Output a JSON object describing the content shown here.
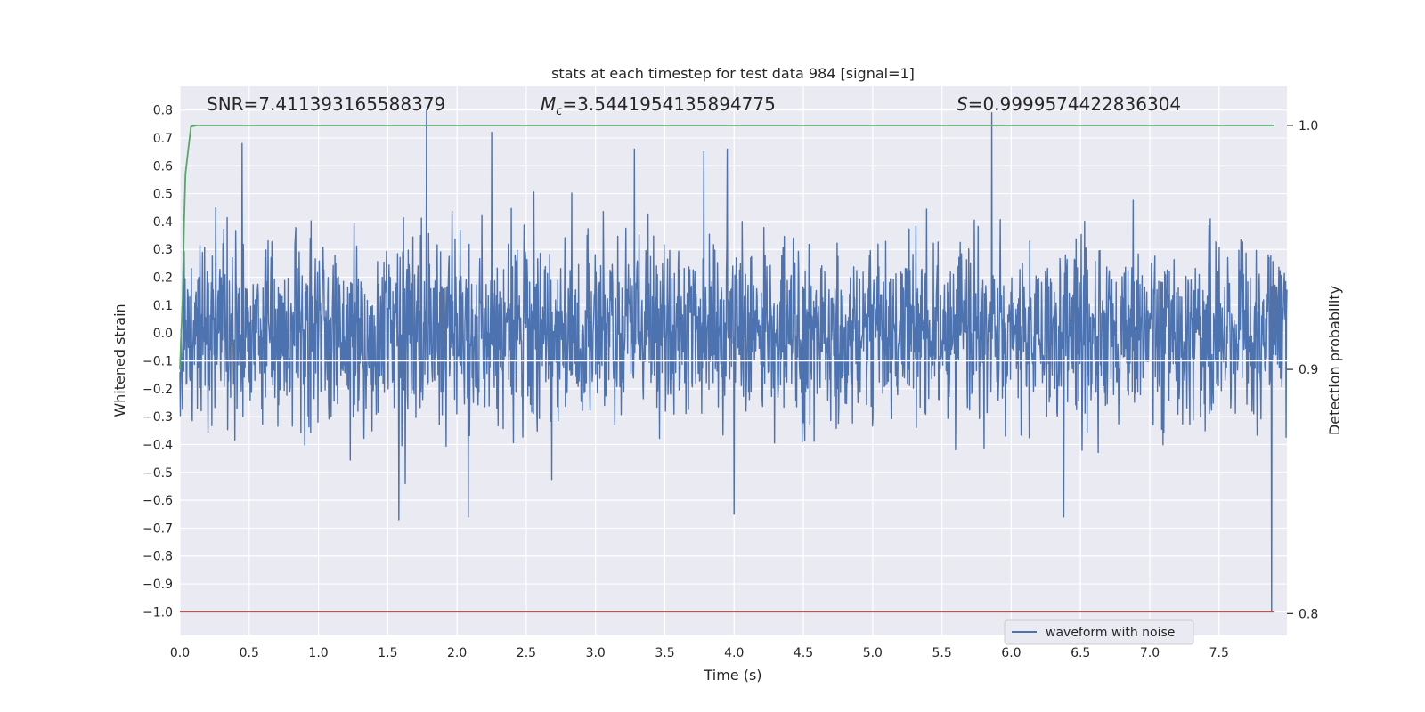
{
  "chart_data": {
    "type": "line",
    "title": "stats at each timestep for test data 984 [signal=1]",
    "xlabel": "Time (s)",
    "ylabel": "Whitened strain",
    "y2label": "Detection probability",
    "xlim": [
      0.0,
      7.99
    ],
    "ylim": [
      -1.085,
      0.885
    ],
    "y2lim": [
      0.791,
      1.016
    ],
    "xticks": [
      "0.0",
      "0.5",
      "1.0",
      "1.5",
      "2.0",
      "2.5",
      "3.0",
      "3.5",
      "4.0",
      "4.5",
      "5.0",
      "5.5",
      "6.0",
      "6.5",
      "7.0",
      "7.5"
    ],
    "xtick_values": [
      0.0,
      0.5,
      1.0,
      1.5,
      2.0,
      2.5,
      3.0,
      3.5,
      4.0,
      4.5,
      5.0,
      5.5,
      6.0,
      6.5,
      7.0,
      7.5
    ],
    "yticks": [
      "0.8",
      "0.7",
      "0.6",
      "0.5",
      "0.4",
      "0.3",
      "0.2",
      "0.1",
      "0.0",
      "−0.1",
      "−0.2",
      "−0.3",
      "−0.4",
      "−0.5",
      "−0.6",
      "−0.7",
      "−0.8",
      "−0.9",
      "−1.0"
    ],
    "ytick_values": [
      0.8,
      0.7,
      0.6,
      0.5,
      0.4,
      0.3,
      0.2,
      0.1,
      0.0,
      -0.1,
      -0.2,
      -0.3,
      -0.4,
      -0.5,
      -0.6,
      -0.7,
      -0.8,
      -0.9,
      -1.0
    ],
    "y2ticks": [
      "1.0",
      "0.9",
      "0.8"
    ],
    "y2tick_values": [
      1.0,
      0.9,
      0.8
    ],
    "grid": true,
    "annotations": {
      "snr": "SNR=7.411393165588379",
      "mc": "=3.5441954135894775",
      "mc_symbol": "M",
      "mc_subscript": "c",
      "s": "=0.9999574422836304",
      "s_symbol": "S"
    },
    "series": [
      {
        "name": "waveform with noise",
        "axis": "left",
        "color": "#4c72b0",
        "t_start": 0.0,
        "t_end": 7.99,
        "y_range": [
          -1.0,
          0.8
        ],
        "typical_envelope": [
          -0.35,
          0.35
        ],
        "peaks": [
          {
            "t": 1.78,
            "y": 0.8
          },
          {
            "t": 5.86,
            "y": 0.79
          },
          {
            "t": 0.45,
            "y": 0.68
          },
          {
            "t": 2.25,
            "y": 0.72
          },
          {
            "t": 3.28,
            "y": 0.66
          },
          {
            "t": 3.78,
            "y": 0.65
          },
          {
            "t": 3.95,
            "y": 0.66
          },
          {
            "t": 7.88,
            "y": 0.63
          },
          {
            "t": 1.58,
            "y": -0.67
          },
          {
            "t": 2.08,
            "y": -0.66
          },
          {
            "t": 4.0,
            "y": -0.65
          },
          {
            "t": 6.38,
            "y": -0.66
          },
          {
            "t": 7.88,
            "y": -1.0
          }
        ]
      },
      {
        "name": "detection probability",
        "axis": "right",
        "color": "#55a868",
        "t": [
          0.0,
          0.02,
          0.03,
          0.04,
          0.06,
          0.08,
          0.12,
          7.9
        ],
        "values": [
          0.9,
          0.93,
          0.96,
          0.98,
          0.99,
          0.9995,
          1.0,
          1.0
        ]
      },
      {
        "name": "threshold",
        "axis": "left",
        "color": "#c44e52",
        "t": [
          0.0,
          7.9
        ],
        "values": [
          -1.0,
          -1.0
        ]
      },
      {
        "name": "reference",
        "axis": "left",
        "color": "#ffffff",
        "t": [
          0.0,
          7.99
        ],
        "values": [
          -0.1,
          -0.1
        ]
      }
    ],
    "legend": {
      "placement": "lower-right",
      "entries": [
        {
          "label": "waveform with noise",
          "color": "#4c72b0"
        }
      ]
    }
  }
}
